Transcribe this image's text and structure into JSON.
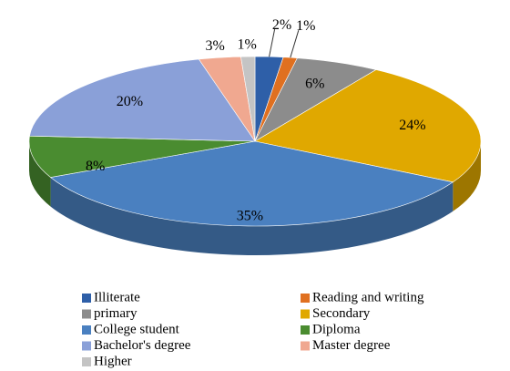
{
  "chart_data": {
    "type": "pie",
    "categories": [
      "Illiterate",
      "Reading and writing",
      "primary",
      "Secondary",
      "College student",
      "Diploma",
      "Bachelor's degree",
      "Master degree",
      "Higher"
    ],
    "values": [
      2,
      1,
      6,
      24,
      35,
      8,
      20,
      3,
      1
    ],
    "value_labels": [
      "2%",
      "1%",
      "6%",
      "24%",
      "35%",
      "8%",
      "20%",
      "3%",
      "1%"
    ],
    "colors": [
      "#2e5fa8",
      "#e07020",
      "#8c8c8c",
      "#e0a800",
      "#4a80c0",
      "#4a8c30",
      "#8aa0d8",
      "#f0a890",
      "#c4c4c4"
    ],
    "legend": "bottom"
  }
}
